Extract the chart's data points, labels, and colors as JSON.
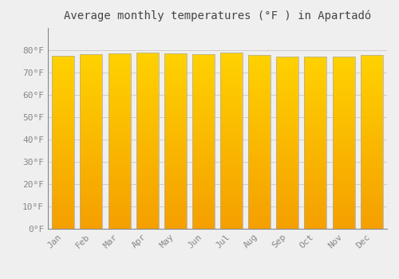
{
  "title": "Average monthly temperatures (°F ) in Apartadó",
  "months": [
    "Jan",
    "Feb",
    "Mar",
    "Apr",
    "May",
    "Jun",
    "Jul",
    "Aug",
    "Sep",
    "Oct",
    "Nov",
    "Dec"
  ],
  "values": [
    77.5,
    78.1,
    78.6,
    79.0,
    78.4,
    78.3,
    78.8,
    77.7,
    77.2,
    77.2,
    77.3,
    77.9
  ],
  "bar_color_bottom": "#F5A800",
  "bar_color_top": "#FFD000",
  "bar_edge_color": "#AAAAAA",
  "background_color": "#EFEFEF",
  "plot_bg_color": "#EFEFEF",
  "grid_color": "#CCCCCC",
  "ylim": [
    0,
    90
  ],
  "yticks": [
    0,
    10,
    20,
    30,
    40,
    50,
    60,
    70,
    80
  ],
  "title_fontsize": 10,
  "tick_fontsize": 8,
  "title_color": "#444444",
  "tick_color": "#888888",
  "bar_width": 0.8
}
